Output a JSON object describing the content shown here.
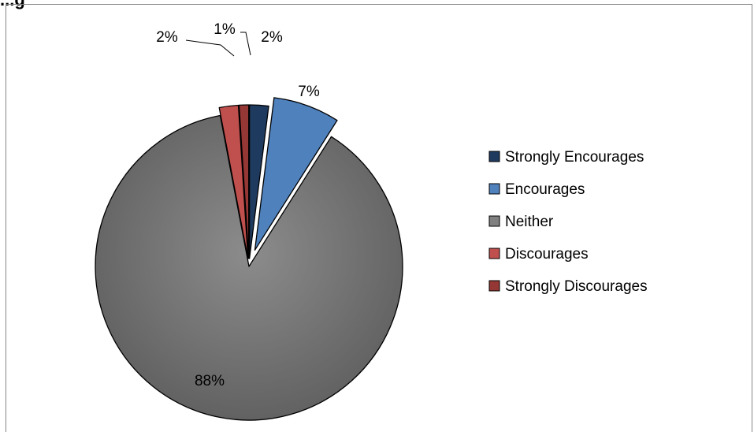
{
  "chart_data": {
    "type": "pie",
    "title": "",
    "categories": [
      "Strongly Encourages",
      "Encourages",
      "Neither",
      "Discourages",
      "Strongly Discourages"
    ],
    "values": [
      2,
      7,
      88,
      2,
      1
    ],
    "data_labels": [
      "2%",
      "7%",
      "88%",
      "2%",
      "1%"
    ],
    "colors": [
      "#1f3a5f",
      "#4f81bd",
      "#808080",
      "#c0504d",
      "#953735"
    ],
    "legend_position": "right",
    "exploded": true
  },
  "header_fragment": "...g"
}
